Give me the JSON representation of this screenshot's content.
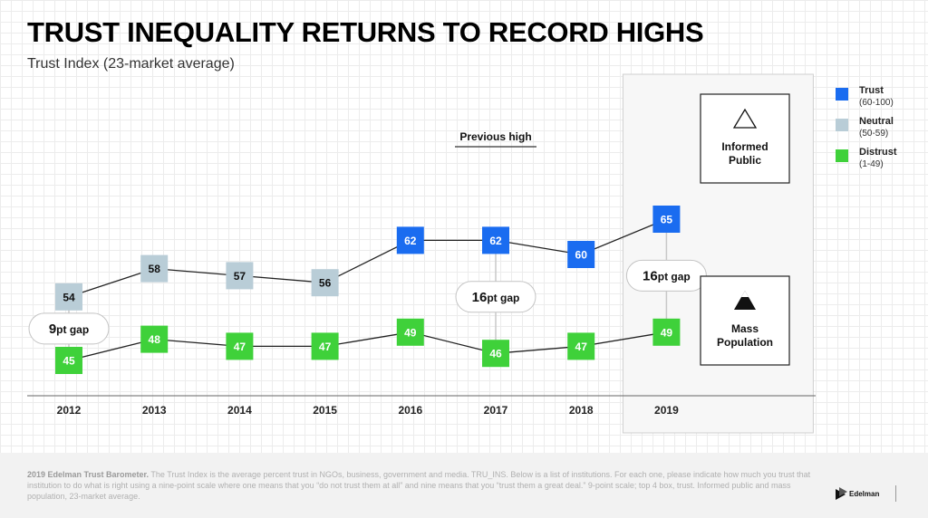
{
  "header": {
    "title": "TRUST INEQUALITY RETURNS TO RECORD HIGHS",
    "subtitle": "Trust Index (23-market average)"
  },
  "chart_data": {
    "type": "line",
    "title": "TRUST INEQUALITY RETURNS TO RECORD HIGHS",
    "subtitle": "Trust Index (23-market average)",
    "categories": [
      "2012",
      "2013",
      "2014",
      "2015",
      "2016",
      "2017",
      "2018",
      "2019"
    ],
    "series": [
      {
        "name": "Informed Public",
        "values": [
          54,
          58,
          57,
          56,
          62,
          62,
          60,
          65
        ],
        "status": [
          "Neutral",
          "Neutral",
          "Neutral",
          "Neutral",
          "Trust",
          "Trust",
          "Trust",
          "Trust"
        ]
      },
      {
        "name": "Mass Population",
        "values": [
          45,
          48,
          47,
          47,
          49,
          46,
          47,
          49
        ],
        "status": [
          "Distrust",
          "Distrust",
          "Distrust",
          "Distrust",
          "Distrust",
          "Distrust",
          "Distrust",
          "Distrust"
        ]
      }
    ],
    "gaps": [
      {
        "category": "2012",
        "value": "9",
        "suffix": "pt gap"
      },
      {
        "category": "2017",
        "value": "16",
        "suffix": "pt gap"
      },
      {
        "category": "2019",
        "value": "16",
        "suffix": "pt gap"
      }
    ],
    "annotations": [
      {
        "category": "2017",
        "text": "Previous high"
      }
    ],
    "highlight_category": "2019",
    "series_boxes": {
      "informed": "Informed Public",
      "mass": "Mass Population"
    },
    "ylim": [
      40,
      70
    ],
    "grid": true
  },
  "legend": {
    "items": [
      {
        "name": "Trust",
        "range": "(60-100)",
        "color": "#1a6cf0"
      },
      {
        "name": "Neutral",
        "range": "(50-59)",
        "color": "#b9cdd7"
      },
      {
        "name": "Distrust",
        "range": "(1-49)",
        "color": "#3fd13a"
      }
    ]
  },
  "colors": {
    "Trust": "#1a6cf0",
    "Neutral": "#b9cdd7",
    "Distrust": "#3fd13a",
    "line": "#222222",
    "gapLine": "#c8c8c8"
  },
  "footer": {
    "source_bold": "2019 Edelman Trust Barometer.",
    "text": "The Trust Index is the average percent trust in NGOs, business, government and media. TRU_INS. Below is a list of institutions. For each one, please indicate how much you trust that institution to do what is right using a nine-point scale where one means that you “do not trust them at all” and nine means that you “trust them a great deal.” 9-point scale; top 4 box, trust. Informed public and mass population, 23-market average.",
    "logo_text": "Edelman"
  }
}
